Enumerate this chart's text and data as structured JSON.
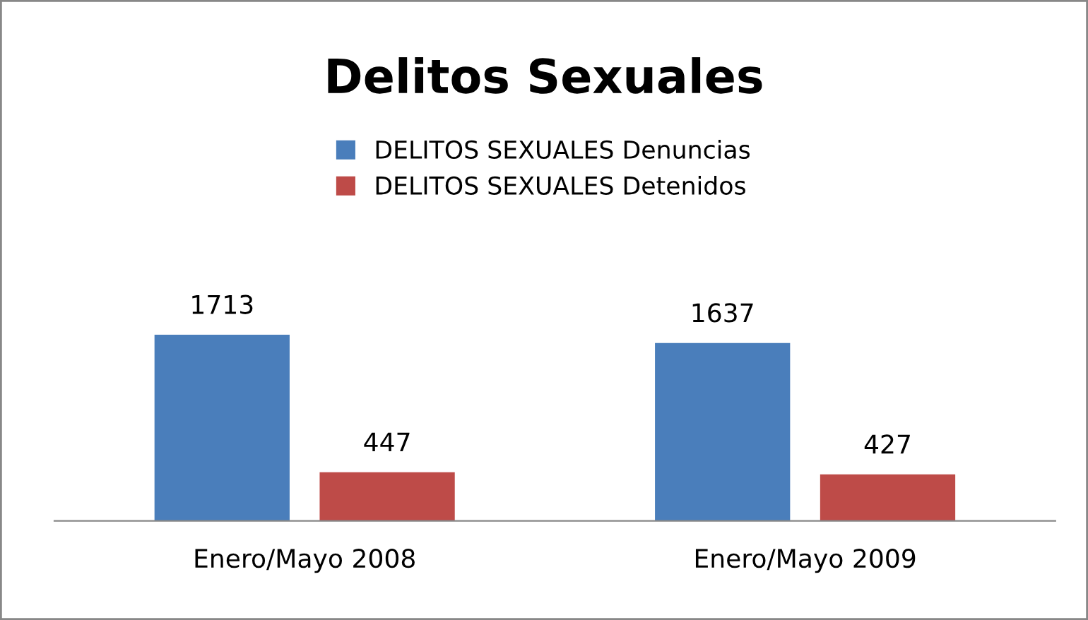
{
  "chart_data": {
    "type": "bar",
    "title": "Delitos Sexuales",
    "categories": [
      "Enero/Mayo 2008",
      "Enero/Mayo 2009"
    ],
    "series": [
      {
        "name": "DELITOS SEXUALES Denuncias",
        "color": "#4a7ebb",
        "values": [
          1713,
          1637
        ]
      },
      {
        "name": "DELITOS SEXUALES Detenidos",
        "color": "#be4b48",
        "values": [
          447,
          427
        ]
      }
    ],
    "data_labels": true,
    "legend": "top",
    "grid": false
  }
}
